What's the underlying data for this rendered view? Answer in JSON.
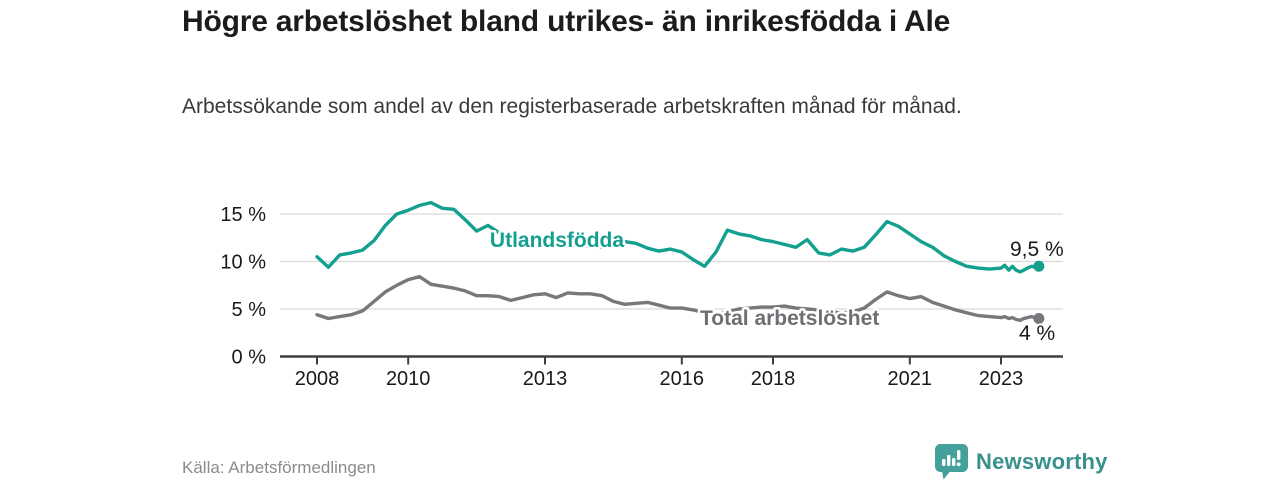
{
  "header": {
    "title": "Högre arbetslöshet bland utrikes- än inrikesfödda i Ale",
    "subtitle": "Arbetssökande som andel av den registerbaserade arbetskraften månad för månad."
  },
  "footer": {
    "source": "Källa: Arbetsförmedlingen",
    "brand": "Newsworthy"
  },
  "colors": {
    "series_foreign_born": "#13a08f",
    "series_total": "#77787c",
    "series_total_label": "#6e6f73",
    "axis": "#3f3f3f",
    "grid": "#d9d9d9",
    "tick_text": "#1a1a1a",
    "end_label_text": "#1a1a1a",
    "brand_teal": "#38918c"
  },
  "chart_data": {
    "type": "line",
    "title": "Högre arbetslöshet bland utrikes- än inrikesfödda i Ale",
    "subtitle": "Arbetssökande som andel av den registerbaserade arbetskraften månad för månad.",
    "xlabel": "",
    "ylabel": "",
    "grid": "horizontal",
    "legend_position": "inline-labels",
    "xlim": [
      2007.9,
      2024.3
    ],
    "ylim": [
      0,
      17.5
    ],
    "x_ticks": [
      2008,
      2010,
      2013,
      2016,
      2018,
      2021,
      2023
    ],
    "y_ticks": [
      {
        "value": 0,
        "label": "0 %"
      },
      {
        "value": 5,
        "label": "5 %"
      },
      {
        "value": 10,
        "label": "10 %"
      },
      {
        "value": 15,
        "label": "15 %"
      }
    ],
    "x": [
      2008,
      2008.25,
      2008.5,
      2008.75,
      2009,
      2009.25,
      2009.5,
      2009.75,
      2010,
      2010.25,
      2010.5,
      2010.75,
      2011,
      2011.25,
      2011.5,
      2011.75,
      2012,
      2012.25,
      2012.5,
      2012.75,
      2013,
      2013.25,
      2013.5,
      2013.75,
      2014,
      2014.25,
      2014.5,
      2014.75,
      2015,
      2015.25,
      2015.5,
      2015.75,
      2016,
      2016.25,
      2016.5,
      2016.75,
      2017,
      2017.25,
      2017.5,
      2017.75,
      2018,
      2018.25,
      2018.5,
      2018.75,
      2019,
      2019.25,
      2019.5,
      2019.75,
      2020,
      2020.25,
      2020.5,
      2020.75,
      2021,
      2021.25,
      2021.5,
      2021.75,
      2022,
      2022.25,
      2022.5,
      2022.75,
      2023,
      2023.08,
      2023.17,
      2023.25,
      2023.33,
      2023.42,
      2023.5,
      2023.58,
      2023.67,
      2023.75,
      2023.83
    ],
    "series": [
      {
        "name": "Utlandsfödda",
        "color": "#13a08f",
        "end_label": "9,5 %",
        "end_value": 9.5,
        "values": [
          10.5,
          9.4,
          10.7,
          10.9,
          11.2,
          12.2,
          13.8,
          15.0,
          15.4,
          15.9,
          16.2,
          15.6,
          15.5,
          14.4,
          13.2,
          13.8,
          13.0,
          12.6,
          12.1,
          12.0,
          11.9,
          11.7,
          11.8,
          11.6,
          11.7,
          11.5,
          11.9,
          12.1,
          11.9,
          11.4,
          11.1,
          11.3,
          11.0,
          10.2,
          9.5,
          11.0,
          13.3,
          12.9,
          12.7,
          12.3,
          12.1,
          11.8,
          11.5,
          12.3,
          10.9,
          10.7,
          11.3,
          11.1,
          11.5,
          12.8,
          14.2,
          13.7,
          12.9,
          12.1,
          11.5,
          10.6,
          10.0,
          9.5,
          9.3,
          9.2,
          9.3,
          9.6,
          9.1,
          9.5,
          9.1,
          8.9,
          9.1,
          9.3,
          9.5,
          9.4,
          9.5
        ]
      },
      {
        "name": "Total arbetslöshet",
        "color": "#77787c",
        "end_label": "4 %",
        "end_value": 4.0,
        "values": [
          4.4,
          4.0,
          4.2,
          4.4,
          4.8,
          5.8,
          6.8,
          7.5,
          8.1,
          8.4,
          7.6,
          7.4,
          7.2,
          6.9,
          6.4,
          6.4,
          6.3,
          5.9,
          6.2,
          6.5,
          6.6,
          6.2,
          6.7,
          6.6,
          6.6,
          6.4,
          5.8,
          5.5,
          5.6,
          5.7,
          5.4,
          5.1,
          5.1,
          4.9,
          4.6,
          4.4,
          4.7,
          5.0,
          5.1,
          5.2,
          5.2,
          5.3,
          5.1,
          5.0,
          4.9,
          4.7,
          4.6,
          4.7,
          5.1,
          6.0,
          6.8,
          6.4,
          6.1,
          6.3,
          5.7,
          5.3,
          4.9,
          4.6,
          4.3,
          4.2,
          4.1,
          4.2,
          4.0,
          4.1,
          3.9,
          3.8,
          4.0,
          4.1,
          4.2,
          4.1,
          4.0
        ]
      }
    ]
  }
}
